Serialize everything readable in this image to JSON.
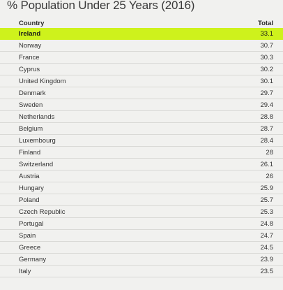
{
  "chart_data": {
    "type": "table",
    "title": "% Population Under 25 Years (2016)",
    "columns": [
      "Country",
      "Total"
    ],
    "highlight_color": "#cef21c",
    "highlighted": "Ireland",
    "rows": [
      {
        "country": "Ireland",
        "total": "33.1"
      },
      {
        "country": "Norway",
        "total": "30.7"
      },
      {
        "country": "France",
        "total": "30.3"
      },
      {
        "country": "Cyprus",
        "total": "30.2"
      },
      {
        "country": "United Kingdom",
        "total": "30.1"
      },
      {
        "country": "Denmark",
        "total": "29.7"
      },
      {
        "country": "Sweden",
        "total": "29.4"
      },
      {
        "country": "Netherlands",
        "total": "28.8"
      },
      {
        "country": "Belgium",
        "total": "28.7"
      },
      {
        "country": "Luxembourg",
        "total": "28.4"
      },
      {
        "country": "Finland",
        "total": "28"
      },
      {
        "country": "Switzerland",
        "total": "26.1"
      },
      {
        "country": "Austria",
        "total": "26"
      },
      {
        "country": "Hungary",
        "total": "25.9"
      },
      {
        "country": "Poland",
        "total": "25.7"
      },
      {
        "country": "Czech Republic",
        "total": "25.3"
      },
      {
        "country": "Portugal",
        "total": "24.8"
      },
      {
        "country": "Spain",
        "total": "24.7"
      },
      {
        "country": "Greece",
        "total": "24.5"
      },
      {
        "country": "Germany",
        "total": "23.9"
      },
      {
        "country": "Italy",
        "total": "23.5"
      }
    ]
  }
}
